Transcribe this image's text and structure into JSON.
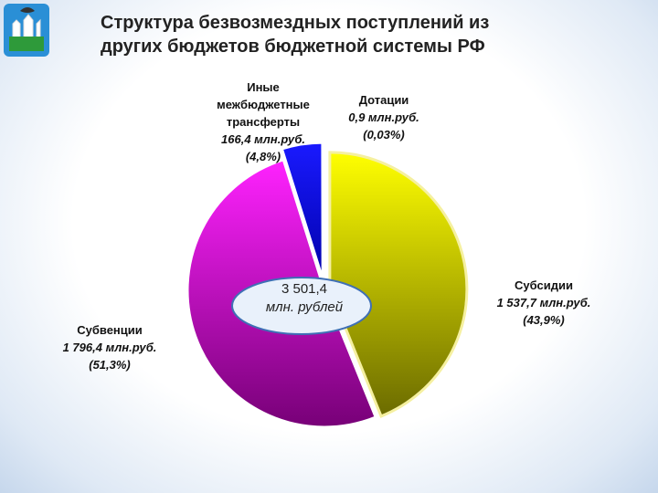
{
  "chart_data": {
    "type": "pie",
    "title": "Структура безвозмездных поступлений из других бюджетов бюджетной системы РФ",
    "categories": [
      "Субсидии",
      "Субвенции",
      "Иные межбюджетные трансферты",
      "Дотации"
    ],
    "values": [
      43.9,
      51.3,
      4.8,
      0.03
    ],
    "value_labels": [
      "(43,9%)",
      "(51,3%)",
      "(4,8%)",
      "(0,03%)"
    ],
    "amounts": [
      1537.7,
      1796.4,
      166.4,
      0.9
    ],
    "amount_labels": [
      "1 537,7 млн.руб.",
      "1 796,4 млн.руб.",
      "166,4 млн.руб.",
      "0,9 млн.руб."
    ],
    "colors": [
      "#e6e600",
      "#ee00ee",
      "#0000ee",
      "#d8d8d8"
    ],
    "total": 3501.4,
    "total_label": "3 501,4",
    "total_unit": "млн. рублей"
  }
}
